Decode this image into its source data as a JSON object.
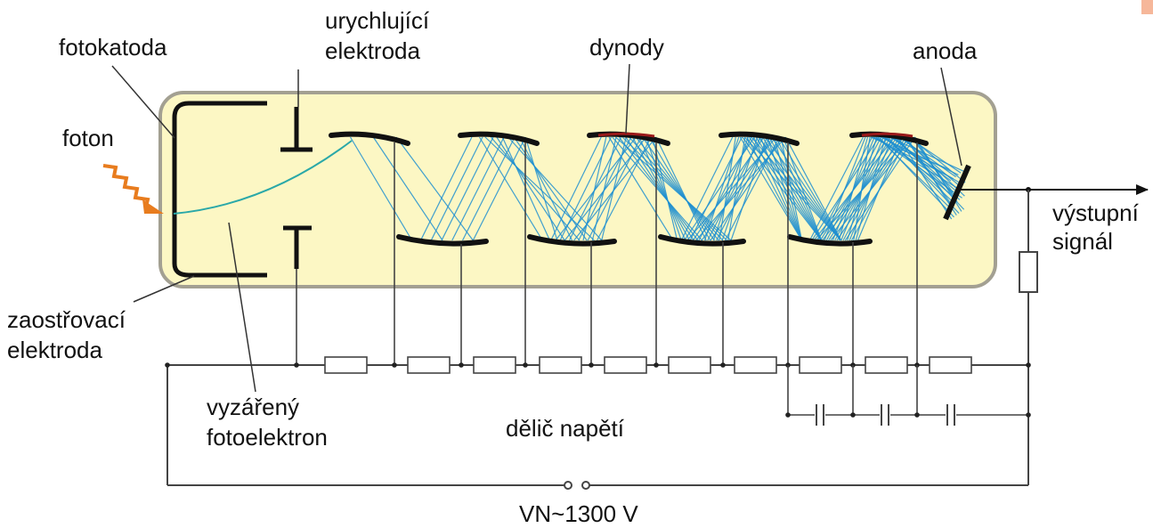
{
  "labels": {
    "urychlujici_line1": "urychlující",
    "urychlujici_line2": "elektroda",
    "fotokatoda": "fotokatoda",
    "dynody": "dynody",
    "anoda": "anoda",
    "foton": "foton",
    "vystupni_line1": "výstupní",
    "vystupni_line2": "signál",
    "zaostrovaci_line1": "zaostřovací",
    "zaostrovaci_line2": "elektroda",
    "vyzareny_line1": "vyzářený",
    "vyzareny_line2": "fotoelektron",
    "delic": "dělič napětí",
    "supply": "VN~1300 V"
  },
  "colors": {
    "tube_fill": "#fcf7c4",
    "tube_border": "#a3a092",
    "electron_paths": "#1f8fd0",
    "photon": "#e87c1e",
    "dynode_highlight": "#9a1a1a",
    "wire": "#444444",
    "corner_accent": "#f6b79a"
  },
  "counts": {
    "dynodes": 9,
    "divider_resistors": 10,
    "capacitors": 3
  }
}
